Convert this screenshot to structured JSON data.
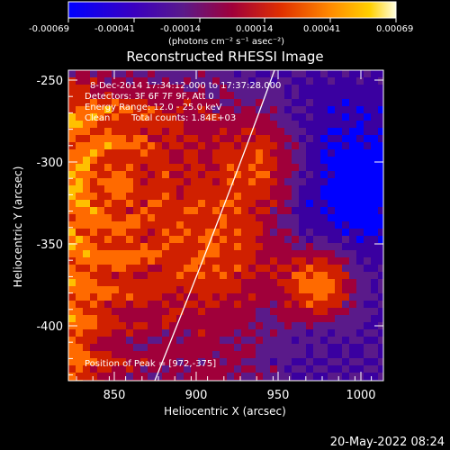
{
  "colorbar": {
    "ticks": [
      "-0.00069",
      "-0.00041",
      "-0.00014",
      "0.00014",
      "0.00041",
      "0.00069"
    ],
    "units": "(photons cm⁻² s⁻¹ asec⁻²)"
  },
  "title": "Reconstructed RHESSI Image",
  "info": {
    "line1": "8-Dec-2014 17:34:12.000 to 17:37:28.000",
    "line2": "Detectors: 3F 6F 7F 9F, Att 0",
    "line3": "Energy Range: 12.0 - 25.0 keV",
    "line4_left": "Clean",
    "line4_right": "Total counts: 1.84E+03"
  },
  "peak_label": "Position of Peak = [972,-375]",
  "axes": {
    "xlabel": "Heliocentric X (arcsec)",
    "ylabel": "Heliocentric Y (arcsec)",
    "xticks": [
      "850",
      "900",
      "950",
      "1000"
    ],
    "yticks": [
      "-250",
      "-300",
      "-350",
      "-400"
    ]
  },
  "timestamp": "20-May-2022 08:24",
  "colors": {
    "background": "#000000",
    "text": "#ffffff",
    "limb": "#ffffff",
    "colormap": [
      "#0000ff",
      "#3a00a0",
      "#5a1a8a",
      "#a0003a",
      "#d02000",
      "#ff6a00",
      "#ffc000",
      "#ffffc0"
    ]
  }
}
